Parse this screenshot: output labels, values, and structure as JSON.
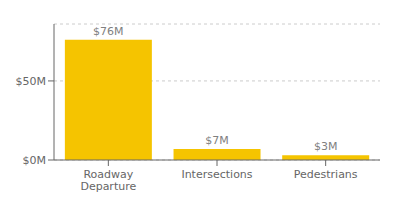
{
  "chart_data": {
    "type": "bar",
    "categories": [
      "Roadway\nDeparture",
      "Intersections",
      "Pedestrians"
    ],
    "values": [
      76,
      7,
      3
    ],
    "value_labels": [
      "$76M",
      "$7M",
      "$3M"
    ],
    "color": "#F5C400",
    "ylim": [
      0,
      86
    ],
    "yticks": [
      {
        "value": 0,
        "label": "$0M"
      },
      {
        "value": 50,
        "label": "$50M"
      }
    ],
    "grid": true
  }
}
